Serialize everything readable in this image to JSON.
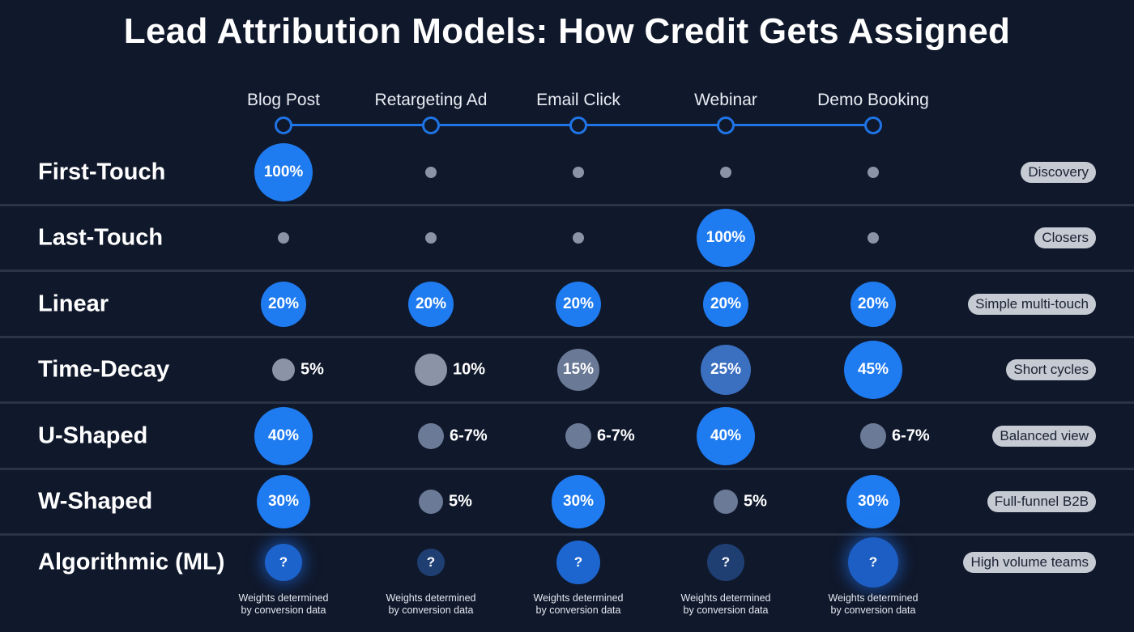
{
  "title": "Lead Attribution Models: How Credit Gets Assigned",
  "stages": [
    "Blog Post",
    "Retargeting Ad",
    "Email Click",
    "Webinar",
    "Demo Booking"
  ],
  "colors": {
    "accent": "#1f7bf0",
    "background": "#10182b",
    "muted": "#8a94a6"
  },
  "models": [
    {
      "name": "First-Touch",
      "tag": "Discovery",
      "cells": [
        {
          "label": "100%",
          "weight": 100
        },
        {
          "weight": 0
        },
        {
          "weight": 0
        },
        {
          "weight": 0
        },
        {
          "weight": 0
        }
      ]
    },
    {
      "name": "Last-Touch",
      "tag": "Closers",
      "cells": [
        {
          "weight": 0
        },
        {
          "weight": 0
        },
        {
          "weight": 0
        },
        {
          "label": "100%",
          "weight": 100
        },
        {
          "weight": 0
        }
      ]
    },
    {
      "name": "Linear",
      "tag": "Simple multi-touch",
      "cells": [
        {
          "label": "20%",
          "weight": 20
        },
        {
          "label": "20%",
          "weight": 20
        },
        {
          "label": "20%",
          "weight": 20
        },
        {
          "label": "20%",
          "weight": 20
        },
        {
          "label": "20%",
          "weight": 20
        }
      ]
    },
    {
      "name": "Time-Decay",
      "tag": "Short cycles",
      "cells": [
        {
          "label": "5%",
          "weight": 5
        },
        {
          "label": "10%",
          "weight": 10
        },
        {
          "label": "15%",
          "weight": 15
        },
        {
          "label": "25%",
          "weight": 25
        },
        {
          "label": "45%",
          "weight": 45
        }
      ]
    },
    {
      "name": "U-Shaped",
      "tag": "Balanced view",
      "cells": [
        {
          "label": "40%",
          "weight": 40
        },
        {
          "label": "6-7%",
          "weight": 6.5
        },
        {
          "label": "6-7%",
          "weight": 6.5
        },
        {
          "label": "40%",
          "weight": 40
        },
        {
          "label": "6-7%",
          "weight": 6.5
        }
      ]
    },
    {
      "name": "W-Shaped",
      "tag": "Full-funnel B2B",
      "cells": [
        {
          "label": "30%",
          "weight": 30
        },
        {
          "label": "5%",
          "weight": 5
        },
        {
          "label": "30%",
          "weight": 30
        },
        {
          "label": "5%",
          "weight": 5
        },
        {
          "label": "30%",
          "weight": 30
        }
      ]
    },
    {
      "name": "Algorithmic (ML)",
      "tag": "High volume teams",
      "cells": [
        {
          "label": "?",
          "note": [
            "Weights determined",
            "by conversion data"
          ]
        },
        {
          "label": "?",
          "note": [
            "Weights determined",
            "by conversion data"
          ]
        },
        {
          "label": "?",
          "note": [
            "Weights determined",
            "by conversion data"
          ]
        },
        {
          "label": "?",
          "note": [
            "Weights determined",
            "by conversion data"
          ]
        },
        {
          "label": "?",
          "note": [
            "Weights determined",
            "by conversion data"
          ]
        }
      ]
    }
  ]
}
